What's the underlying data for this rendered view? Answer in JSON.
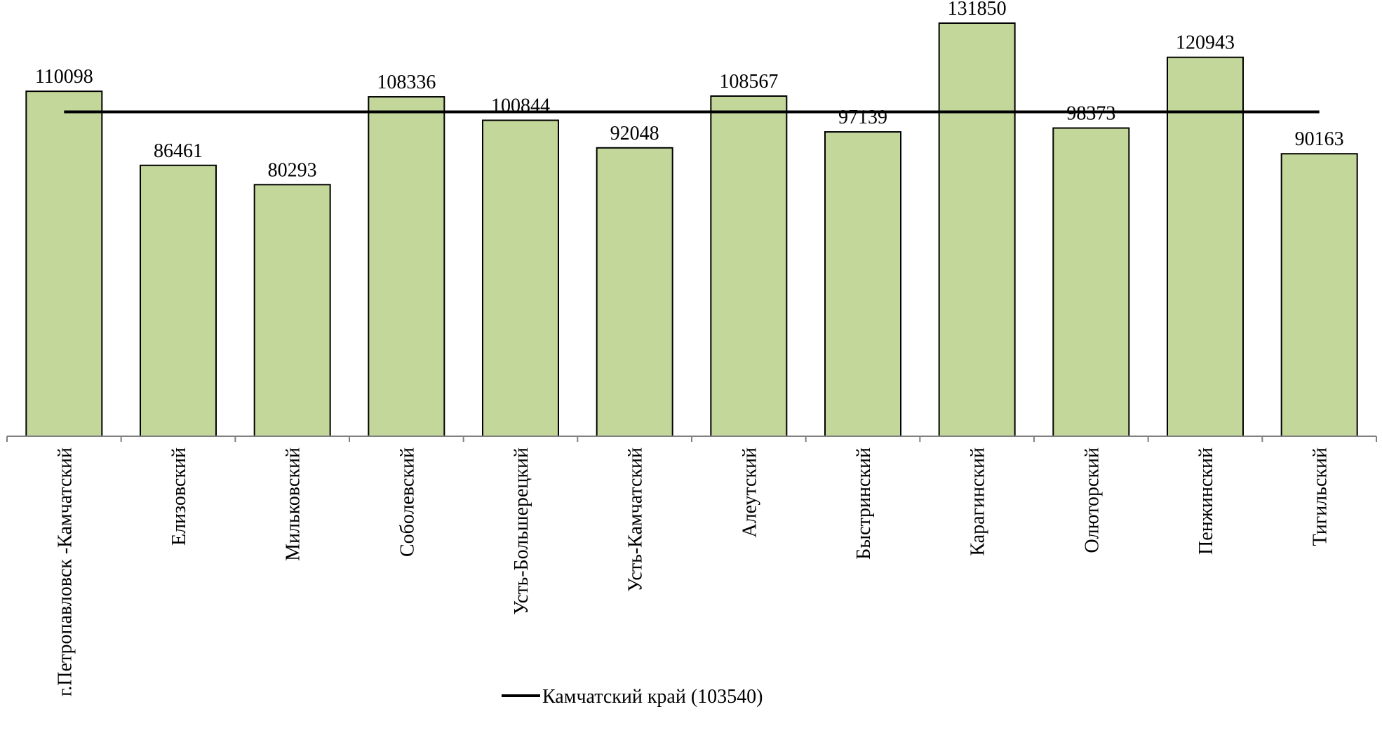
{
  "chart_data": {
    "type": "bar",
    "categories": [
      "г.Петропавловск -Камчатский",
      "Елизовский",
      "Мильковский",
      "Соболевский",
      "Усть-Большерецкий",
      "Усть-Камчатский",
      "Алеутский",
      "Быстринский",
      "Карагинский",
      "Олюторский",
      "Пенжинский",
      "Тигильский"
    ],
    "values": [
      110098,
      86461,
      80293,
      108336,
      100844,
      92048,
      108567,
      97139,
      131850,
      98373,
      120943,
      90163
    ],
    "value_labels": [
      "110098",
      "86461",
      "80293",
      "108336",
      "100844",
      "92048",
      "108567",
      "97139",
      "131850",
      "98373",
      "120943",
      "90163"
    ],
    "reference_line": {
      "value": 103540,
      "label": "Камчатский край (103540)",
      "color": "#000000"
    },
    "ylim": [
      0,
      137000
    ],
    "bar_color": "#c4d79b",
    "bar_border_color": "#000000",
    "title": "",
    "xlabel": "",
    "ylabel": "",
    "grid": false,
    "legend_position": "bottom"
  }
}
